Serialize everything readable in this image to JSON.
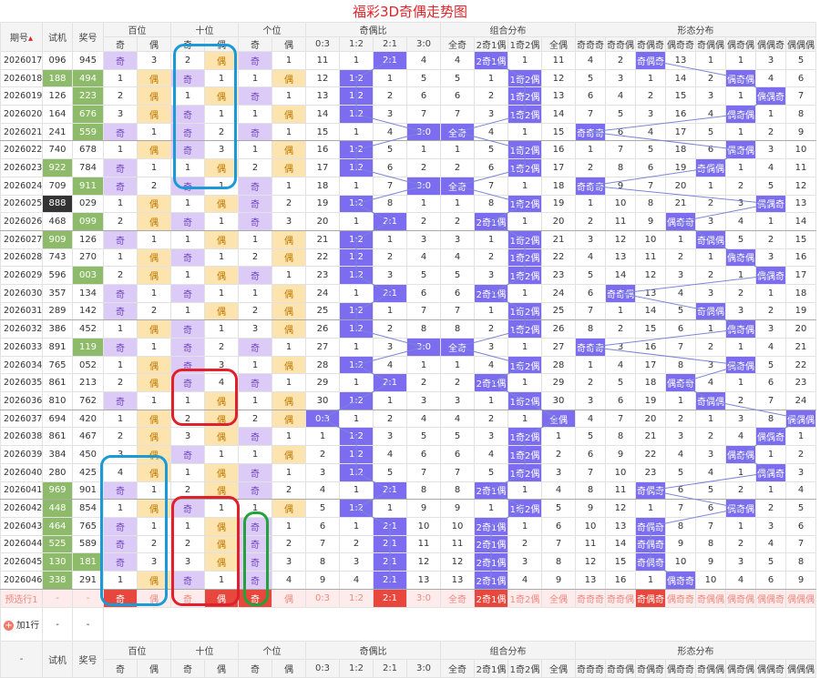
{
  "title": "福彩3D奇偶走势图",
  "header": {
    "issue": "期号",
    "test": "试机",
    "draw": "奖号",
    "groups": [
      {
        "name": "百位",
        "cols": [
          "奇",
          "偶"
        ]
      },
      {
        "name": "十位",
        "cols": [
          "奇",
          "偶"
        ]
      },
      {
        "name": "个位",
        "cols": [
          "奇",
          "偶"
        ]
      },
      {
        "name": "奇偶比",
        "cols": [
          "0:3",
          "1:2",
          "2:1",
          "3:0"
        ]
      },
      {
        "name": "组合分布",
        "cols": [
          "全奇",
          "2奇1偶",
          "1奇2偶",
          "全偶"
        ]
      },
      {
        "name": "形态分布",
        "cols": [
          "奇奇奇",
          "奇奇偶",
          "奇偶奇",
          "偶奇奇",
          "奇偶偶",
          "偶奇偶",
          "偶偶奇",
          "偶偶偶"
        ]
      }
    ]
  },
  "rows": [
    {
      "issue": "2026017",
      "test": "096",
      "draw": "945",
      "cells": [
        "奇",
        3,
        2,
        "偶",
        "奇",
        1,
        11,
        1,
        "2:1",
        4,
        4,
        "2奇1偶",
        1,
        11,
        4,
        2,
        "奇偶奇",
        13,
        1,
        1,
        3,
        5
      ]
    },
    {
      "issue": "2026018",
      "test": "188",
      "draw": "494",
      "test_bg": "#8dbb6a",
      "draw_bg": "#8dbb6a",
      "cells": [
        1,
        "偶",
        "奇",
        1,
        1,
        "偶",
        12,
        "1:2",
        1,
        5,
        5,
        1,
        "1奇2偶",
        12,
        5,
        3,
        1,
        14,
        2,
        "偶奇偶",
        4,
        6
      ]
    },
    {
      "issue": "2026019",
      "test": "126",
      "draw": "223",
      "draw_bg": "#8dbb6a",
      "cells": [
        2,
        "偶",
        1,
        "偶",
        "奇",
        1,
        13,
        "1:2",
        2,
        6,
        6,
        2,
        "1奇2偶",
        13,
        6,
        4,
        2,
        15,
        3,
        1,
        "偶偶奇",
        7
      ]
    },
    {
      "issue": "2026020",
      "test": "164",
      "draw": "676",
      "draw_bg": "#8dbb6a",
      "cells": [
        3,
        "偶",
        "奇",
        1,
        1,
        "偶",
        14,
        "1:2",
        3,
        7,
        7,
        3,
        "1奇2偶",
        14,
        7,
        5,
        3,
        16,
        4,
        "偶奇偶",
        1,
        8
      ]
    },
    {
      "issue": "2026021",
      "test": "241",
      "draw": "559",
      "draw_bg": "#8dbb6a",
      "cells": [
        "奇",
        1,
        "奇",
        2,
        "奇",
        1,
        15,
        1,
        4,
        "3:0",
        "全奇",
        4,
        1,
        15,
        "奇奇奇",
        6,
        4,
        17,
        5,
        1,
        2,
        9
      ]
    },
    {
      "issue": "2026022",
      "test": "740",
      "draw": "678",
      "cells": [
        1,
        "偶",
        "奇",
        3,
        1,
        "偶",
        16,
        "1:2",
        5,
        1,
        1,
        5,
        "1奇2偶",
        16,
        1,
        7,
        5,
        18,
        6,
        "偶奇偶",
        3,
        10
      ]
    },
    {
      "issue": "2026023",
      "test": "922",
      "draw": "784",
      "test_bg": "#8dbb6a",
      "cells": [
        "奇",
        1,
        1,
        "偶",
        2,
        "偶",
        17,
        "1:2",
        6,
        2,
        2,
        6,
        "1奇2偶",
        17,
        2,
        8,
        6,
        19,
        "奇偶偶",
        1,
        4,
        11
      ]
    },
    {
      "issue": "2026024",
      "test": "709",
      "draw": "911",
      "draw_bg": "#8dbb6a",
      "cells": [
        "奇",
        2,
        "奇",
        1,
        "奇",
        1,
        18,
        1,
        7,
        "3:0",
        "全奇",
        7,
        1,
        18,
        "奇奇奇",
        9,
        7,
        20,
        1,
        2,
        5,
        12
      ]
    },
    {
      "issue": "2026025",
      "test": "888",
      "draw": "029",
      "test_bg": "#333333",
      "cells": [
        1,
        "偶",
        1,
        "偶",
        "奇",
        2,
        19,
        "1:2",
        8,
        1,
        1,
        8,
        "1奇2偶",
        19,
        1,
        10,
        8,
        21,
        2,
        3,
        "偶偶奇",
        13
      ]
    },
    {
      "issue": "2026026",
      "test": "468",
      "draw": "099",
      "draw_bg": "#8dbb6a",
      "cells": [
        2,
        "偶",
        "奇",
        1,
        "奇",
        3,
        20,
        1,
        "2:1",
        2,
        2,
        "2奇1偶",
        1,
        20,
        2,
        11,
        9,
        "偶奇奇",
        3,
        4,
        1,
        14
      ]
    },
    {
      "issue": "2026027",
      "test": "909",
      "draw": "126",
      "test_bg": "#8dbb6a",
      "cells": [
        "奇",
        1,
        1,
        "偶",
        1,
        "偶",
        21,
        "1:2",
        1,
        3,
        3,
        1,
        "1奇2偶",
        21,
        3,
        12,
        10,
        1,
        "奇偶偶",
        5,
        2,
        15
      ]
    },
    {
      "issue": "2026028",
      "test": "743",
      "draw": "270",
      "cells": [
        1,
        "偶",
        "奇",
        1,
        2,
        "偶",
        22,
        "1:2",
        2,
        4,
        4,
        2,
        "1奇2偶",
        22,
        4,
        13,
        11,
        2,
        1,
        "偶奇偶",
        3,
        16
      ]
    },
    {
      "issue": "2026029",
      "test": "596",
      "draw": "003",
      "draw_bg": "#8dbb6a",
      "cells": [
        2,
        "偶",
        1,
        "偶",
        "奇",
        1,
        23,
        "1:2",
        3,
        5,
        5,
        3,
        "1奇2偶",
        23,
        5,
        14,
        12,
        3,
        2,
        1,
        "偶偶奇",
        17
      ]
    },
    {
      "issue": "2026030",
      "test": "357",
      "draw": "134",
      "cells": [
        "奇",
        1,
        "奇",
        1,
        1,
        "偶",
        24,
        1,
        "2:1",
        6,
        6,
        "2奇1偶",
        1,
        24,
        6,
        "奇奇偶",
        13,
        4,
        3,
        2,
        1,
        18
      ]
    },
    {
      "issue": "2026031",
      "test": "289",
      "draw": "142",
      "cells": [
        "奇",
        2,
        1,
        "偶",
        2,
        "偶",
        25,
        "1:2",
        1,
        7,
        7,
        1,
        "1奇2偶",
        25,
        7,
        1,
        14,
        5,
        "奇偶偶",
        3,
        2,
        19
      ]
    },
    {
      "issue": "2026032",
      "test": "386",
      "draw": "452",
      "cells": [
        1,
        "偶",
        "奇",
        1,
        3,
        "偶",
        26,
        "1:2",
        2,
        8,
        8,
        2,
        "1奇2偶",
        26,
        8,
        2,
        15,
        6,
        1,
        "偶奇偶",
        3,
        20
      ]
    },
    {
      "issue": "2026033",
      "test": "891",
      "draw": "119",
      "draw_bg": "#8dbb6a",
      "cells": [
        "奇",
        1,
        "奇",
        2,
        "奇",
        1,
        27,
        1,
        3,
        "3:0",
        "全奇",
        3,
        1,
        27,
        "奇奇奇",
        3,
        16,
        7,
        2,
        1,
        4,
        21
      ]
    },
    {
      "issue": "2026034",
      "test": "765",
      "draw": "052",
      "cells": [
        1,
        "偶",
        "奇",
        3,
        1,
        "偶",
        28,
        "1:2",
        4,
        1,
        1,
        4,
        "1奇2偶",
        28,
        1,
        4,
        17,
        8,
        3,
        "偶奇偶",
        5,
        22
      ]
    },
    {
      "issue": "2026035",
      "test": "861",
      "draw": "213",
      "cells": [
        2,
        "偶",
        "奇",
        4,
        "奇",
        1,
        29,
        1,
        "2:1",
        2,
        2,
        "2奇1偶",
        1,
        29,
        2,
        5,
        18,
        "偶奇奇",
        4,
        1,
        6,
        23
      ]
    },
    {
      "issue": "2026036",
      "test": "810",
      "draw": "762",
      "cells": [
        "奇",
        1,
        1,
        "偶",
        1,
        "偶",
        30,
        "1:2",
        1,
        3,
        3,
        1,
        "1奇2偶",
        30,
        3,
        6,
        19,
        1,
        "奇偶偶",
        2,
        7,
        24
      ]
    },
    {
      "issue": "2026037",
      "test": "694",
      "draw": "420",
      "cells": [
        1,
        "偶",
        2,
        "偶",
        2,
        "偶",
        "0:3",
        1,
        2,
        4,
        4,
        2,
        1,
        "全偶",
        4,
        7,
        20,
        2,
        1,
        3,
        8,
        "偶偶偶"
      ]
    },
    {
      "issue": "2026038",
      "test": "861",
      "draw": "467",
      "cells": [
        2,
        "偶",
        3,
        "偶",
        "奇",
        1,
        1,
        "1:2",
        3,
        5,
        5,
        3,
        "1奇2偶",
        1,
        5,
        8,
        21,
        3,
        2,
        4,
        "偶偶奇",
        1
      ]
    },
    {
      "issue": "2026039",
      "test": "384",
      "draw": "450",
      "cells": [
        3,
        "偶",
        "奇",
        1,
        1,
        "偶",
        2,
        "1:2",
        4,
        6,
        6,
        4,
        "1奇2偶",
        2,
        6,
        9,
        22,
        4,
        3,
        "偶奇偶",
        1,
        2
      ]
    },
    {
      "issue": "2026040",
      "test": "280",
      "draw": "425",
      "cells": [
        4,
        "偶",
        1,
        "偶",
        "奇",
        1,
        3,
        "1:2",
        5,
        7,
        7,
        5,
        "1奇2偶",
        3,
        7,
        10,
        23,
        5,
        4,
        1,
        "偶偶奇",
        3
      ]
    },
    {
      "issue": "2026041",
      "test": "969",
      "draw": "901",
      "test_bg": "#8dbb6a",
      "cells": [
        "奇",
        1,
        2,
        "偶",
        "奇",
        2,
        4,
        1,
        "2:1",
        8,
        8,
        "2奇1偶",
        1,
        4,
        8,
        11,
        "奇偶奇",
        6,
        5,
        2,
        1,
        4
      ]
    },
    {
      "issue": "2026042",
      "test": "448",
      "draw": "854",
      "test_bg": "#8dbb6a",
      "cells": [
        1,
        "偶",
        "奇",
        1,
        1,
        "偶",
        5,
        "1:2",
        1,
        9,
        9,
        1,
        "1奇2偶",
        5,
        9,
        12,
        1,
        7,
        6,
        "偶奇偶",
        2,
        5
      ]
    },
    {
      "issue": "2026043",
      "test": "464",
      "draw": "765",
      "test_bg": "#8dbb6a",
      "cells": [
        "奇",
        1,
        1,
        "偶",
        "奇",
        1,
        6,
        1,
        "2:1",
        10,
        10,
        "2奇1偶",
        1,
        6,
        10,
        13,
        "奇偶奇",
        8,
        7,
        1,
        3,
        6
      ]
    },
    {
      "issue": "2026044",
      "test": "525",
      "draw": "589",
      "test_bg": "#8dbb6a",
      "cells": [
        "奇",
        2,
        2,
        "偶",
        "奇",
        2,
        7,
        2,
        "2:1",
        11,
        11,
        "2奇1偶",
        2,
        7,
        11,
        14,
        "奇偶奇",
        9,
        8,
        2,
        4,
        7
      ]
    },
    {
      "issue": "2026045",
      "test": "130",
      "draw": "181",
      "test_bg": "#8dbb6a",
      "draw_bg": "#8dbb6a",
      "cells": [
        "奇",
        3,
        3,
        "偶",
        "奇",
        3,
        8,
        3,
        "2:1",
        12,
        12,
        "2奇1偶",
        3,
        8,
        12,
        15,
        "奇偶奇",
        10,
        9,
        3,
        5,
        8
      ]
    },
    {
      "issue": "2026046",
      "test": "338",
      "draw": "291",
      "test_bg": "#8dbb6a",
      "cells": [
        1,
        "偶",
        "奇",
        1,
        "奇",
        4,
        9,
        4,
        "2:1",
        13,
        13,
        "2奇1偶",
        4,
        9,
        13,
        16,
        1,
        "偶奇奇",
        10,
        4,
        6,
        9
      ]
    }
  ],
  "prediction": {
    "label": "预选行1",
    "test": "-",
    "draw": "-",
    "cells": [
      "奇",
      "偶",
      "奇",
      "偶",
      "奇",
      "偶",
      "0:3",
      "1:2",
      "2:1",
      "3:0",
      "全奇",
      "2奇1偶",
      "1奇2偶",
      "全偶",
      "奇奇奇",
      "奇奇偶",
      "奇偶奇",
      "偶奇奇",
      "奇偶偶",
      "偶奇偶",
      "偶偶奇",
      "偶偶偶"
    ],
    "selected": [
      0,
      3,
      4,
      8,
      11,
      16
    ]
  },
  "add_row": {
    "label": "加1行",
    "test": "-",
    "draw": "-"
  },
  "footer": {
    "issue": "-"
  }
}
